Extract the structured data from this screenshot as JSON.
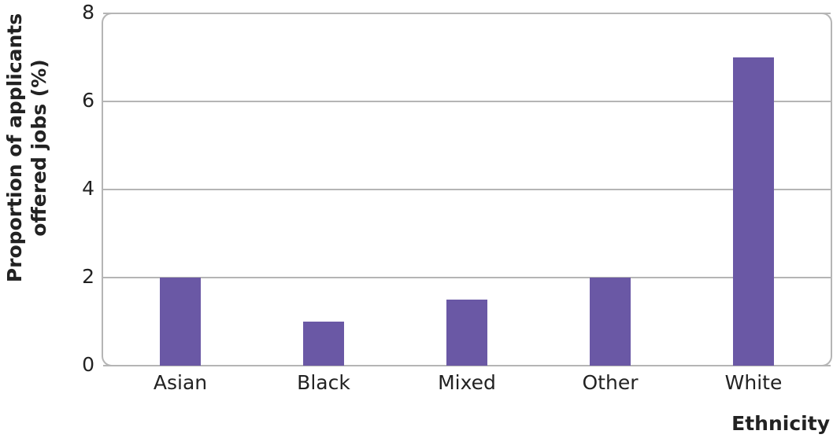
{
  "chart_data": {
    "type": "bar",
    "categories": [
      "Asian",
      "Black",
      "Mixed",
      "Other",
      "White"
    ],
    "values": [
      2,
      1,
      1.5,
      2,
      7
    ],
    "color": "#6a58a5",
    "xlabel": "Ethnicity",
    "ylabel": [
      "Proportion of applicants",
      "offered jobs (%)"
    ],
    "ylim": [
      0,
      8
    ],
    "yticks": [
      0,
      2,
      4,
      6,
      8
    ],
    "grid": true
  }
}
